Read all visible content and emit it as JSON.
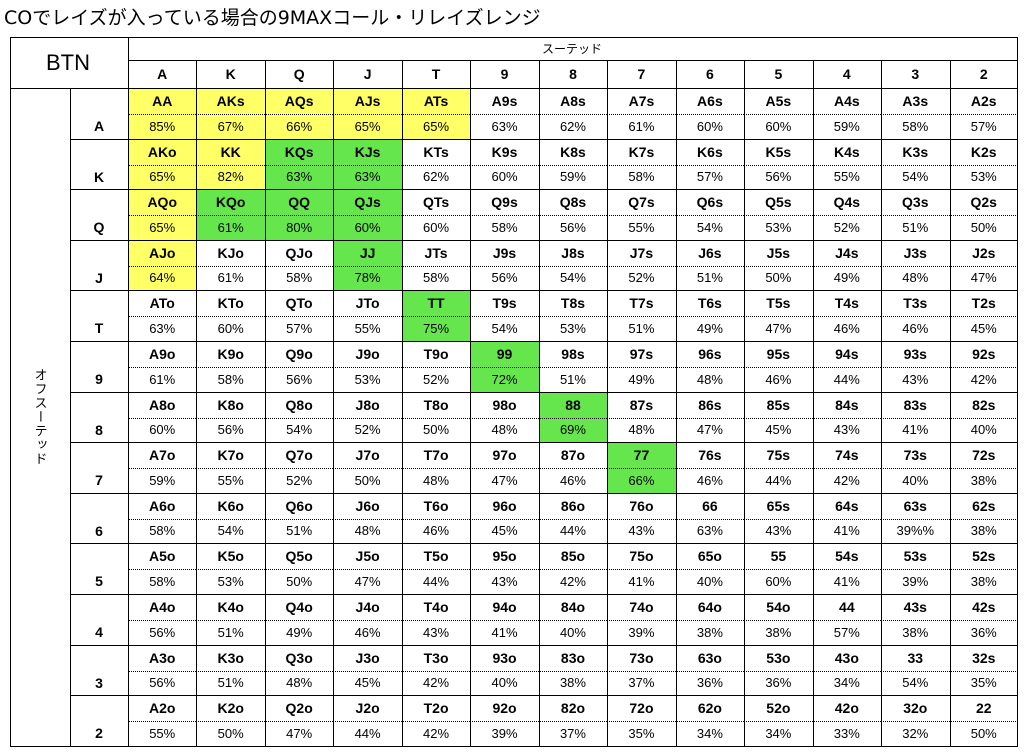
{
  "title": "COでレイズが入っている場合の9MAXコール・リレイズレンジ",
  "position": "BTN",
  "suited_label": "スーテッド",
  "offsuit_label": "オフスーテッド",
  "ranks": [
    "A",
    "K",
    "Q",
    "J",
    "T",
    "9",
    "8",
    "7",
    "6",
    "5",
    "4",
    "3",
    "2"
  ],
  "colors": {
    "yellow": "#ffff66",
    "green": "#66e64d",
    "border": "#000000"
  },
  "rows": [
    {
      "rank": "A",
      "cells": [
        {
          "hand": "AA",
          "pct": "85%",
          "color": "yellow"
        },
        {
          "hand": "AKs",
          "pct": "67%",
          "color": "yellow"
        },
        {
          "hand": "AQs",
          "pct": "66%",
          "color": "yellow"
        },
        {
          "hand": "AJs",
          "pct": "65%",
          "color": "yellow"
        },
        {
          "hand": "ATs",
          "pct": "65%",
          "color": "yellow"
        },
        {
          "hand": "A9s",
          "pct": "63%"
        },
        {
          "hand": "A8s",
          "pct": "62%"
        },
        {
          "hand": "A7s",
          "pct": "61%"
        },
        {
          "hand": "A6s",
          "pct": "60%"
        },
        {
          "hand": "A5s",
          "pct": "60%"
        },
        {
          "hand": "A4s",
          "pct": "59%"
        },
        {
          "hand": "A3s",
          "pct": "58%"
        },
        {
          "hand": "A2s",
          "pct": "57%"
        }
      ]
    },
    {
      "rank": "K",
      "cells": [
        {
          "hand": "AKo",
          "pct": "65%",
          "color": "yellow"
        },
        {
          "hand": "KK",
          "pct": "82%",
          "color": "yellow"
        },
        {
          "hand": "KQs",
          "pct": "63%",
          "color": "green"
        },
        {
          "hand": "KJs",
          "pct": "63%",
          "color": "green"
        },
        {
          "hand": "KTs",
          "pct": "62%"
        },
        {
          "hand": "K9s",
          "pct": "60%"
        },
        {
          "hand": "K8s",
          "pct": "59%"
        },
        {
          "hand": "K7s",
          "pct": "58%"
        },
        {
          "hand": "K6s",
          "pct": "57%"
        },
        {
          "hand": "K5s",
          "pct": "56%"
        },
        {
          "hand": "K4s",
          "pct": "55%"
        },
        {
          "hand": "K3s",
          "pct": "54%"
        },
        {
          "hand": "K2s",
          "pct": "53%"
        }
      ]
    },
    {
      "rank": "Q",
      "cells": [
        {
          "hand": "AQo",
          "pct": "65%",
          "color": "yellow"
        },
        {
          "hand": "KQo",
          "pct": "61%",
          "color": "green"
        },
        {
          "hand": "QQ",
          "pct": "80%",
          "color": "green"
        },
        {
          "hand": "QJs",
          "pct": "60%",
          "color": "green"
        },
        {
          "hand": "QTs",
          "pct": "60%"
        },
        {
          "hand": "Q9s",
          "pct": "58%"
        },
        {
          "hand": "Q8s",
          "pct": "56%"
        },
        {
          "hand": "Q7s",
          "pct": "55%"
        },
        {
          "hand": "Q6s",
          "pct": "54%"
        },
        {
          "hand": "Q5s",
          "pct": "53%"
        },
        {
          "hand": "Q4s",
          "pct": "52%"
        },
        {
          "hand": "Q3s",
          "pct": "51%"
        },
        {
          "hand": "Q2s",
          "pct": "50%"
        }
      ]
    },
    {
      "rank": "J",
      "cells": [
        {
          "hand": "AJo",
          "pct": "64%",
          "color": "yellow"
        },
        {
          "hand": "KJo",
          "pct": "61%"
        },
        {
          "hand": "QJo",
          "pct": "58%"
        },
        {
          "hand": "JJ",
          "pct": "78%",
          "color": "green"
        },
        {
          "hand": "JTs",
          "pct": "58%"
        },
        {
          "hand": "J9s",
          "pct": "56%"
        },
        {
          "hand": "J8s",
          "pct": "54%"
        },
        {
          "hand": "J7s",
          "pct": "52%"
        },
        {
          "hand": "J6s",
          "pct": "51%"
        },
        {
          "hand": "J5s",
          "pct": "50%"
        },
        {
          "hand": "J4s",
          "pct": "49%"
        },
        {
          "hand": "J3s",
          "pct": "48%"
        },
        {
          "hand": "J2s",
          "pct": "47%"
        }
      ]
    },
    {
      "rank": "T",
      "cells": [
        {
          "hand": "ATo",
          "pct": "63%"
        },
        {
          "hand": "KTo",
          "pct": "60%"
        },
        {
          "hand": "QTo",
          "pct": "57%"
        },
        {
          "hand": "JTo",
          "pct": "55%"
        },
        {
          "hand": "TT",
          "pct": "75%",
          "color": "green"
        },
        {
          "hand": "T9s",
          "pct": "54%"
        },
        {
          "hand": "T8s",
          "pct": "53%"
        },
        {
          "hand": "T7s",
          "pct": "51%"
        },
        {
          "hand": "T6s",
          "pct": "49%"
        },
        {
          "hand": "T5s",
          "pct": "47%"
        },
        {
          "hand": "T4s",
          "pct": "46%"
        },
        {
          "hand": "T3s",
          "pct": "46%"
        },
        {
          "hand": "T2s",
          "pct": "45%"
        }
      ]
    },
    {
      "rank": "9",
      "cells": [
        {
          "hand": "A9o",
          "pct": "61%"
        },
        {
          "hand": "K9o",
          "pct": "58%"
        },
        {
          "hand": "Q9o",
          "pct": "56%"
        },
        {
          "hand": "J9o",
          "pct": "53%"
        },
        {
          "hand": "T9o",
          "pct": "52%"
        },
        {
          "hand": "99",
          "pct": "72%",
          "color": "green"
        },
        {
          "hand": "98s",
          "pct": "51%"
        },
        {
          "hand": "97s",
          "pct": "49%"
        },
        {
          "hand": "96s",
          "pct": "48%"
        },
        {
          "hand": "95s",
          "pct": "46%"
        },
        {
          "hand": "94s",
          "pct": "44%"
        },
        {
          "hand": "93s",
          "pct": "43%"
        },
        {
          "hand": "92s",
          "pct": "42%"
        }
      ]
    },
    {
      "rank": "8",
      "cells": [
        {
          "hand": "A8o",
          "pct": "60%"
        },
        {
          "hand": "K8o",
          "pct": "56%"
        },
        {
          "hand": "Q8o",
          "pct": "54%"
        },
        {
          "hand": "J8o",
          "pct": "52%"
        },
        {
          "hand": "T8o",
          "pct": "50%"
        },
        {
          "hand": "98o",
          "pct": "48%"
        },
        {
          "hand": "88",
          "pct": "69%",
          "color": "green"
        },
        {
          "hand": "87s",
          "pct": "48%"
        },
        {
          "hand": "86s",
          "pct": "47%"
        },
        {
          "hand": "85s",
          "pct": "45%"
        },
        {
          "hand": "84s",
          "pct": "43%"
        },
        {
          "hand": "83s",
          "pct": "41%"
        },
        {
          "hand": "82s",
          "pct": "40%"
        }
      ]
    },
    {
      "rank": "7",
      "cells": [
        {
          "hand": "A7o",
          "pct": "59%"
        },
        {
          "hand": "K7o",
          "pct": "55%"
        },
        {
          "hand": "Q7o",
          "pct": "52%"
        },
        {
          "hand": "J7o",
          "pct": "50%"
        },
        {
          "hand": "T7o",
          "pct": "48%"
        },
        {
          "hand": "97o",
          "pct": "47%"
        },
        {
          "hand": "87o",
          "pct": "46%"
        },
        {
          "hand": "77",
          "pct": "66%",
          "color": "green"
        },
        {
          "hand": "76s",
          "pct": "46%"
        },
        {
          "hand": "75s",
          "pct": "44%"
        },
        {
          "hand": "74s",
          "pct": "42%"
        },
        {
          "hand": "73s",
          "pct": "40%"
        },
        {
          "hand": "72s",
          "pct": "38%"
        }
      ]
    },
    {
      "rank": "6",
      "cells": [
        {
          "hand": "A6o",
          "pct": "58%"
        },
        {
          "hand": "K6o",
          "pct": "54%"
        },
        {
          "hand": "Q6o",
          "pct": "51%"
        },
        {
          "hand": "J6o",
          "pct": "48%"
        },
        {
          "hand": "T6o",
          "pct": "46%"
        },
        {
          "hand": "96o",
          "pct": "45%"
        },
        {
          "hand": "86o",
          "pct": "44%"
        },
        {
          "hand": "76o",
          "pct": "43%"
        },
        {
          "hand": "66",
          "pct": "63%"
        },
        {
          "hand": "65s",
          "pct": "43%"
        },
        {
          "hand": "64s",
          "pct": "41%"
        },
        {
          "hand": "63s",
          "pct": "39%%"
        },
        {
          "hand": "62s",
          "pct": "38%"
        }
      ]
    },
    {
      "rank": "5",
      "cells": [
        {
          "hand": "A5o",
          "pct": "58%"
        },
        {
          "hand": "K5o",
          "pct": "53%"
        },
        {
          "hand": "Q5o",
          "pct": "50%"
        },
        {
          "hand": "J5o",
          "pct": "47%"
        },
        {
          "hand": "T5o",
          "pct": "44%"
        },
        {
          "hand": "95o",
          "pct": "43%"
        },
        {
          "hand": "85o",
          "pct": "42%"
        },
        {
          "hand": "75o",
          "pct": "41%"
        },
        {
          "hand": "65o",
          "pct": "40%"
        },
        {
          "hand": "55",
          "pct": "60%"
        },
        {
          "hand": "54s",
          "pct": "41%"
        },
        {
          "hand": "53s",
          "pct": "39%"
        },
        {
          "hand": "52s",
          "pct": "38%"
        }
      ]
    },
    {
      "rank": "4",
      "cells": [
        {
          "hand": "A4o",
          "pct": "56%"
        },
        {
          "hand": "K4o",
          "pct": "51%"
        },
        {
          "hand": "Q4o",
          "pct": "49%"
        },
        {
          "hand": "J4o",
          "pct": "46%"
        },
        {
          "hand": "T4o",
          "pct": "43%"
        },
        {
          "hand": "94o",
          "pct": "41%"
        },
        {
          "hand": "84o",
          "pct": "40%"
        },
        {
          "hand": "74o",
          "pct": "39%"
        },
        {
          "hand": "64o",
          "pct": "38%"
        },
        {
          "hand": "54o",
          "pct": "38%"
        },
        {
          "hand": "44",
          "pct": "57%"
        },
        {
          "hand": "43s",
          "pct": "38%"
        },
        {
          "hand": "42s",
          "pct": "36%"
        }
      ]
    },
    {
      "rank": "3",
      "cells": [
        {
          "hand": "A3o",
          "pct": "56%"
        },
        {
          "hand": "K3o",
          "pct": "51%"
        },
        {
          "hand": "Q3o",
          "pct": "48%"
        },
        {
          "hand": "J3o",
          "pct": "45%"
        },
        {
          "hand": "T3o",
          "pct": "42%"
        },
        {
          "hand": "93o",
          "pct": "40%"
        },
        {
          "hand": "83o",
          "pct": "38%"
        },
        {
          "hand": "73o",
          "pct": "37%"
        },
        {
          "hand": "63o",
          "pct": "36%"
        },
        {
          "hand": "53o",
          "pct": "36%"
        },
        {
          "hand": "43o",
          "pct": "34%"
        },
        {
          "hand": "33",
          "pct": "54%"
        },
        {
          "hand": "32s",
          "pct": "35%"
        }
      ]
    },
    {
      "rank": "2",
      "cells": [
        {
          "hand": "A2o",
          "pct": "55%"
        },
        {
          "hand": "K2o",
          "pct": "50%"
        },
        {
          "hand": "Q2o",
          "pct": "47%"
        },
        {
          "hand": "J2o",
          "pct": "44%"
        },
        {
          "hand": "T2o",
          "pct": "42%"
        },
        {
          "hand": "92o",
          "pct": "39%"
        },
        {
          "hand": "82o",
          "pct": "37%"
        },
        {
          "hand": "72o",
          "pct": "35%"
        },
        {
          "hand": "62o",
          "pct": "34%"
        },
        {
          "hand": "52o",
          "pct": "34%"
        },
        {
          "hand": "42o",
          "pct": "33%"
        },
        {
          "hand": "32o",
          "pct": "32%"
        },
        {
          "hand": "22",
          "pct": "50%"
        }
      ]
    }
  ]
}
